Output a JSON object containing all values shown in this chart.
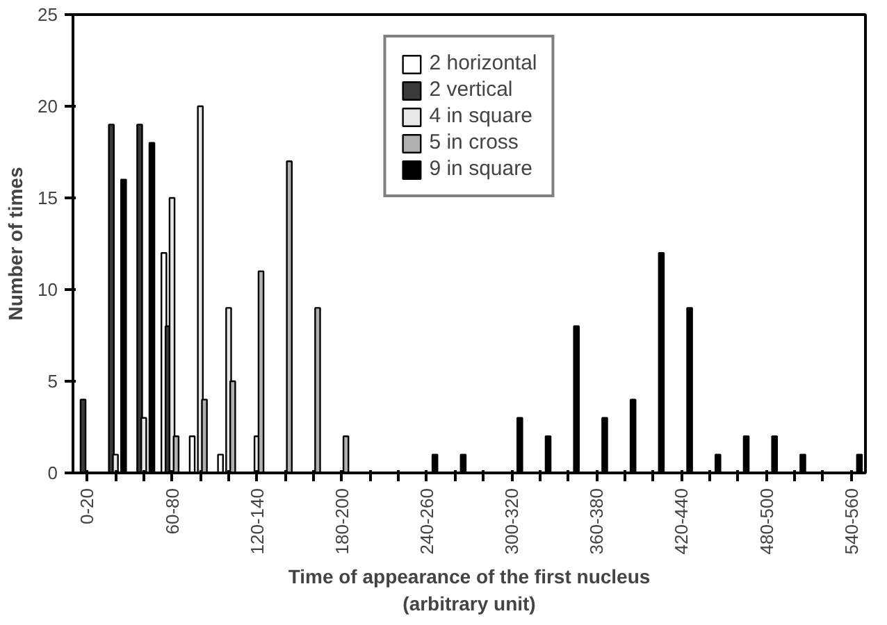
{
  "chart_data": {
    "type": "bar",
    "xlabel": "Time of appearance of the first nucleus\n(arbitrary unit)",
    "ylabel": "Number of times",
    "categories": [
      "0-20",
      null,
      null,
      "60-80",
      null,
      null,
      "120-140",
      null,
      null,
      "180-200",
      null,
      null,
      "240-260",
      null,
      null,
      "300-320",
      null,
      null,
      "360-380",
      null,
      null,
      "420-440",
      null,
      null,
      "480-500",
      null,
      null,
      "540-560"
    ],
    "series": [
      {
        "name": "2 horizontal",
        "color": "#ffffff",
        "values": [
          null,
          null,
          null,
          12,
          2,
          1,
          null,
          null,
          null,
          null,
          null,
          null,
          null,
          null,
          null,
          null,
          null,
          null,
          null,
          null,
          null,
          null,
          null,
          null,
          null,
          null,
          null,
          null
        ]
      },
      {
        "name": "2 vertical",
        "color": "#3a3a3a",
        "values": [
          4,
          19,
          19,
          8,
          null,
          null,
          null,
          null,
          null,
          null,
          null,
          null,
          null,
          null,
          null,
          null,
          null,
          null,
          null,
          null,
          null,
          null,
          null,
          null,
          null,
          null,
          null,
          null
        ]
      },
      {
        "name": "4 in square",
        "color": "#e8e8e8",
        "values": [
          null,
          1,
          3,
          15,
          20,
          9,
          2,
          null,
          null,
          null,
          null,
          null,
          null,
          null,
          null,
          null,
          null,
          null,
          null,
          null,
          null,
          null,
          null,
          null,
          null,
          null,
          null,
          null
        ]
      },
      {
        "name": "5 in cross",
        "color": "#b0b0b0",
        "values": [
          null,
          null,
          null,
          2,
          4,
          5,
          11,
          17,
          9,
          2,
          null,
          null,
          null,
          null,
          null,
          null,
          null,
          null,
          null,
          null,
          null,
          null,
          null,
          null,
          null,
          null,
          null,
          null
        ]
      },
      {
        "name": "9 in square",
        "color": "#000000",
        "values": [
          null,
          16,
          18,
          null,
          null,
          null,
          null,
          null,
          null,
          null,
          null,
          null,
          1,
          1,
          null,
          3,
          2,
          8,
          3,
          4,
          12,
          9,
          1,
          2,
          2,
          1,
          null,
          1
        ]
      }
    ],
    "ylim": [
      0,
      25
    ],
    "yticks": [
      0,
      5,
      10,
      15,
      20,
      25
    ],
    "grid": false,
    "legend": "top"
  }
}
